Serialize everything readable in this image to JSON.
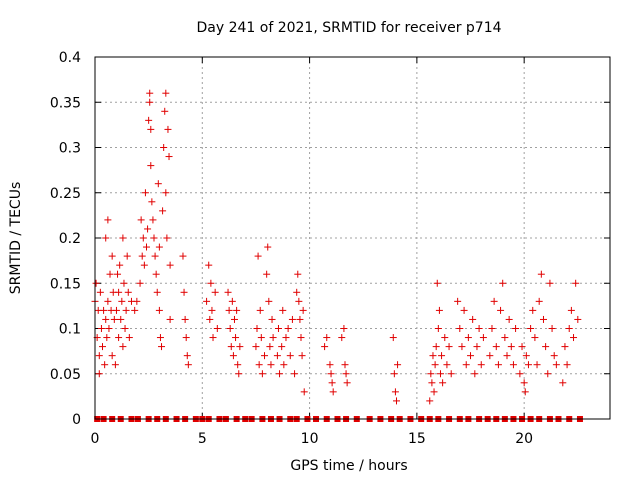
{
  "chart_data": {
    "type": "scatter",
    "title": "Day 241 of 2021, SRMTID for receiver p714",
    "xlabel": "GPS time / hours",
    "ylabel": "SRMTID / TECUs",
    "xlim": [
      0,
      24
    ],
    "ylim": [
      0,
      0.4
    ],
    "xticks": [
      0,
      5,
      10,
      15,
      20
    ],
    "yticks": [
      0,
      0.05,
      0.1,
      0.15,
      0.2,
      0.25,
      0.3,
      0.35,
      0.4
    ],
    "ytick_labels": [
      "0",
      "0.05",
      "0.1",
      "0.15",
      "0.2",
      "0.25",
      "0.3",
      "0.35",
      "0.4"
    ],
    "grid": true,
    "marker": "+",
    "color": "#e00000",
    "series": [
      {
        "name": "SRMTID",
        "points": [
          [
            0.0,
            0.13
          ],
          [
            0.05,
            0.15
          ],
          [
            0.1,
            0.09
          ],
          [
            0.15,
            0.12
          ],
          [
            0.2,
            0.07
          ],
          [
            0.2,
            0.05
          ],
          [
            0.25,
            0.14
          ],
          [
            0.3,
            0.1
          ],
          [
            0.35,
            0.08
          ],
          [
            0.4,
            0.12
          ],
          [
            0.45,
            0.06
          ],
          [
            0.5,
            0.11
          ],
          [
            0.5,
            0.2
          ],
          [
            0.55,
            0.09
          ],
          [
            0.6,
            0.13
          ],
          [
            0.6,
            0.22
          ],
          [
            0.65,
            0.1
          ],
          [
            0.7,
            0.16
          ],
          [
            0.75,
            0.12
          ],
          [
            0.8,
            0.07
          ],
          [
            0.8,
            0.18
          ],
          [
            0.85,
            0.14
          ],
          [
            0.9,
            0.11
          ],
          [
            0.95,
            0.06
          ],
          [
            1.0,
            0.12
          ],
          [
            1.05,
            0.16
          ],
          [
            1.1,
            0.14
          ],
          [
            1.1,
            0.09
          ],
          [
            1.15,
            0.17
          ],
          [
            1.2,
            0.11
          ],
          [
            1.25,
            0.13
          ],
          [
            1.3,
            0.08
          ],
          [
            1.3,
            0.2
          ],
          [
            1.35,
            0.15
          ],
          [
            1.4,
            0.1
          ],
          [
            1.45,
            0.12
          ],
          [
            1.5,
            0.18
          ],
          [
            1.55,
            0.14
          ],
          [
            1.6,
            0.09
          ],
          [
            1.7,
            0.13
          ],
          [
            1.85,
            0.12
          ],
          [
            1.95,
            0.13
          ],
          [
            2.1,
            0.15
          ],
          [
            2.15,
            0.22
          ],
          [
            2.2,
            0.18
          ],
          [
            2.25,
            0.2
          ],
          [
            2.3,
            0.17
          ],
          [
            2.35,
            0.25
          ],
          [
            2.4,
            0.19
          ],
          [
            2.45,
            0.21
          ],
          [
            2.5,
            0.33
          ],
          [
            2.55,
            0.36
          ],
          [
            2.55,
            0.35
          ],
          [
            2.6,
            0.32
          ],
          [
            2.6,
            0.28
          ],
          [
            2.65,
            0.24
          ],
          [
            2.7,
            0.22
          ],
          [
            2.75,
            0.2
          ],
          [
            2.8,
            0.18
          ],
          [
            2.85,
            0.16
          ],
          [
            2.9,
            0.14
          ],
          [
            2.95,
            0.26
          ],
          [
            3.0,
            0.19
          ],
          [
            3.0,
            0.12
          ],
          [
            3.05,
            0.09
          ],
          [
            3.1,
            0.08
          ],
          [
            3.15,
            0.23
          ],
          [
            3.2,
            0.3
          ],
          [
            3.25,
            0.34
          ],
          [
            3.3,
            0.36
          ],
          [
            3.3,
            0.25
          ],
          [
            3.35,
            0.2
          ],
          [
            3.4,
            0.32
          ],
          [
            3.45,
            0.29
          ],
          [
            3.5,
            0.17
          ],
          [
            3.5,
            0.11
          ],
          [
            4.1,
            0.18
          ],
          [
            4.15,
            0.14
          ],
          [
            4.2,
            0.11
          ],
          [
            4.25,
            0.09
          ],
          [
            4.3,
            0.07
          ],
          [
            4.35,
            0.06
          ],
          [
            5.2,
            0.13
          ],
          [
            5.3,
            0.17
          ],
          [
            5.35,
            0.11
          ],
          [
            5.4,
            0.15
          ],
          [
            5.45,
            0.12
          ],
          [
            5.5,
            0.09
          ],
          [
            5.6,
            0.14
          ],
          [
            5.7,
            0.1
          ],
          [
            6.2,
            0.14
          ],
          [
            6.25,
            0.12
          ],
          [
            6.3,
            0.1
          ],
          [
            6.35,
            0.08
          ],
          [
            6.4,
            0.13
          ],
          [
            6.45,
            0.07
          ],
          [
            6.5,
            0.11
          ],
          [
            6.55,
            0.09
          ],
          [
            6.6,
            0.12
          ],
          [
            6.65,
            0.06
          ],
          [
            6.7,
            0.05
          ],
          [
            6.75,
            0.08
          ],
          [
            7.5,
            0.08
          ],
          [
            7.55,
            0.1
          ],
          [
            7.6,
            0.18
          ],
          [
            7.65,
            0.06
          ],
          [
            7.7,
            0.12
          ],
          [
            7.75,
            0.09
          ],
          [
            7.8,
            0.05
          ],
          [
            7.9,
            0.07
          ],
          [
            8.0,
            0.16
          ],
          [
            8.05,
            0.19
          ],
          [
            8.1,
            0.13
          ],
          [
            8.15,
            0.08
          ],
          [
            8.2,
            0.06
          ],
          [
            8.25,
            0.11
          ],
          [
            8.3,
            0.09
          ],
          [
            8.5,
            0.07
          ],
          [
            8.55,
            0.1
          ],
          [
            8.6,
            0.05
          ],
          [
            8.7,
            0.08
          ],
          [
            8.75,
            0.12
          ],
          [
            8.8,
            0.06
          ],
          [
            8.9,
            0.09
          ],
          [
            9.0,
            0.1
          ],
          [
            9.1,
            0.07
          ],
          [
            9.2,
            0.11
          ],
          [
            9.3,
            0.05
          ],
          [
            9.4,
            0.14
          ],
          [
            9.45,
            0.16
          ],
          [
            9.5,
            0.13
          ],
          [
            9.55,
            0.11
          ],
          [
            9.6,
            0.09
          ],
          [
            9.65,
            0.07
          ],
          [
            9.7,
            0.12
          ],
          [
            9.75,
            0.03
          ],
          [
            10.7,
            0.08
          ],
          [
            10.8,
            0.09
          ],
          [
            10.95,
            0.06
          ],
          [
            11.0,
            0.05
          ],
          [
            11.05,
            0.04
          ],
          [
            11.1,
            0.03
          ],
          [
            11.5,
            0.09
          ],
          [
            11.6,
            0.1
          ],
          [
            11.65,
            0.06
          ],
          [
            11.7,
            0.05
          ],
          [
            11.75,
            0.04
          ],
          [
            13.9,
            0.09
          ],
          [
            13.95,
            0.05
          ],
          [
            14.0,
            0.03
          ],
          [
            14.05,
            0.02
          ],
          [
            14.1,
            0.06
          ],
          [
            15.6,
            0.02
          ],
          [
            15.65,
            0.05
          ],
          [
            15.7,
            0.04
          ],
          [
            15.75,
            0.07
          ],
          [
            15.8,
            0.03
          ],
          [
            15.85,
            0.06
          ],
          [
            15.9,
            0.08
          ],
          [
            15.95,
            0.15
          ],
          [
            16.0,
            0.1
          ],
          [
            16.05,
            0.12
          ],
          [
            16.1,
            0.05
          ],
          [
            16.15,
            0.07
          ],
          [
            16.2,
            0.04
          ],
          [
            16.3,
            0.09
          ],
          [
            16.4,
            0.06
          ],
          [
            16.5,
            0.08
          ],
          [
            16.6,
            0.05
          ],
          [
            16.9,
            0.13
          ],
          [
            17.0,
            0.1
          ],
          [
            17.1,
            0.08
          ],
          [
            17.2,
            0.12
          ],
          [
            17.3,
            0.06
          ],
          [
            17.4,
            0.09
          ],
          [
            17.5,
            0.07
          ],
          [
            17.6,
            0.11
          ],
          [
            17.7,
            0.05
          ],
          [
            17.8,
            0.08
          ],
          [
            17.9,
            0.1
          ],
          [
            18.0,
            0.06
          ],
          [
            18.1,
            0.09
          ],
          [
            18.4,
            0.07
          ],
          [
            18.5,
            0.1
          ],
          [
            18.6,
            0.13
          ],
          [
            18.7,
            0.08
          ],
          [
            18.8,
            0.06
          ],
          [
            18.9,
            0.12
          ],
          [
            19.0,
            0.15
          ],
          [
            19.1,
            0.09
          ],
          [
            19.2,
            0.07
          ],
          [
            19.3,
            0.11
          ],
          [
            19.4,
            0.08
          ],
          [
            19.5,
            0.06
          ],
          [
            19.6,
            0.1
          ],
          [
            19.8,
            0.05
          ],
          [
            19.9,
            0.08
          ],
          [
            20.0,
            0.04
          ],
          [
            20.05,
            0.03
          ],
          [
            20.1,
            0.07
          ],
          [
            20.2,
            0.06
          ],
          [
            20.3,
            0.1
          ],
          [
            20.4,
            0.12
          ],
          [
            20.5,
            0.09
          ],
          [
            20.6,
            0.06
          ],
          [
            20.7,
            0.13
          ],
          [
            20.8,
            0.16
          ],
          [
            20.9,
            0.11
          ],
          [
            21.0,
            0.08
          ],
          [
            21.1,
            0.05
          ],
          [
            21.2,
            0.15
          ],
          [
            21.3,
            0.1
          ],
          [
            21.4,
            0.07
          ],
          [
            21.5,
            0.06
          ],
          [
            21.8,
            0.04
          ],
          [
            21.9,
            0.08
          ],
          [
            22.0,
            0.06
          ],
          [
            22.1,
            0.1
          ],
          [
            22.2,
            0.12
          ],
          [
            22.3,
            0.09
          ],
          [
            22.4,
            0.15
          ],
          [
            22.5,
            0.11
          ]
        ],
        "zero_points_x": [
          0.1,
          0.4,
          0.8,
          1.2,
          1.7,
          2.0,
          2.5,
          2.9,
          3.3,
          3.8,
          4.2,
          4.7,
          5.0,
          5.3,
          5.8,
          6.1,
          6.6,
          7.0,
          7.3,
          7.8,
          8.2,
          8.6,
          9.1,
          9.4,
          9.9,
          10.3,
          10.8,
          11.3,
          11.7,
          12.2,
          12.8,
          13.3,
          13.8,
          14.2,
          14.7,
          15.2,
          15.6,
          16.0,
          16.5,
          17.0,
          17.4,
          17.9,
          18.3,
          18.7,
          19.1,
          19.5,
          19.9,
          20.3,
          20.7,
          21.2,
          21.6,
          22.1,
          22.6
        ]
      }
    ]
  }
}
